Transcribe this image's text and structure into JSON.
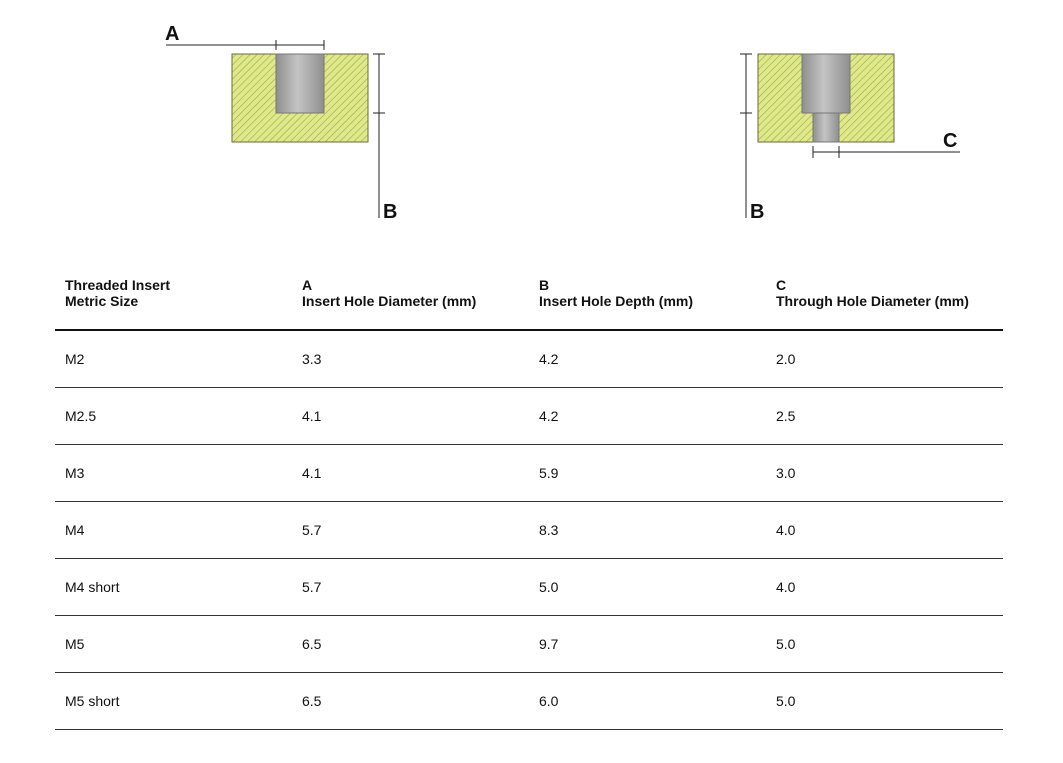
{
  "diagram": {
    "left": {
      "label_a": "A",
      "label_b": "B"
    },
    "right": {
      "label_b": "B",
      "label_c": "C"
    },
    "colors": {
      "material": "#dfe98a",
      "hatch": "#9aa74a",
      "bore": "#a6a6a6",
      "line": "#222222"
    }
  },
  "table": {
    "headers": [
      {
        "line1": "Threaded Insert",
        "line2": "Metric Size"
      },
      {
        "line1": "A",
        "line2": "Insert Hole Diameter (mm)"
      },
      {
        "line1": "B",
        "line2": "Insert Hole Depth (mm)"
      },
      {
        "line1": "C",
        "line2": "Through Hole Diameter (mm)"
      }
    ],
    "rows": [
      [
        "M2",
        "3.3",
        "4.2",
        "2.0"
      ],
      [
        "M2.5",
        "4.1",
        "4.2",
        "2.5"
      ],
      [
        "M3",
        "4.1",
        "5.9",
        "3.0"
      ],
      [
        "M4",
        "5.7",
        "8.3",
        "4.0"
      ],
      [
        "M4 short",
        "5.7",
        "5.0",
        "4.0"
      ],
      [
        "M5",
        "6.5",
        "9.7",
        "5.0"
      ],
      [
        "M5 short",
        "6.5",
        "6.0",
        "5.0"
      ]
    ]
  }
}
